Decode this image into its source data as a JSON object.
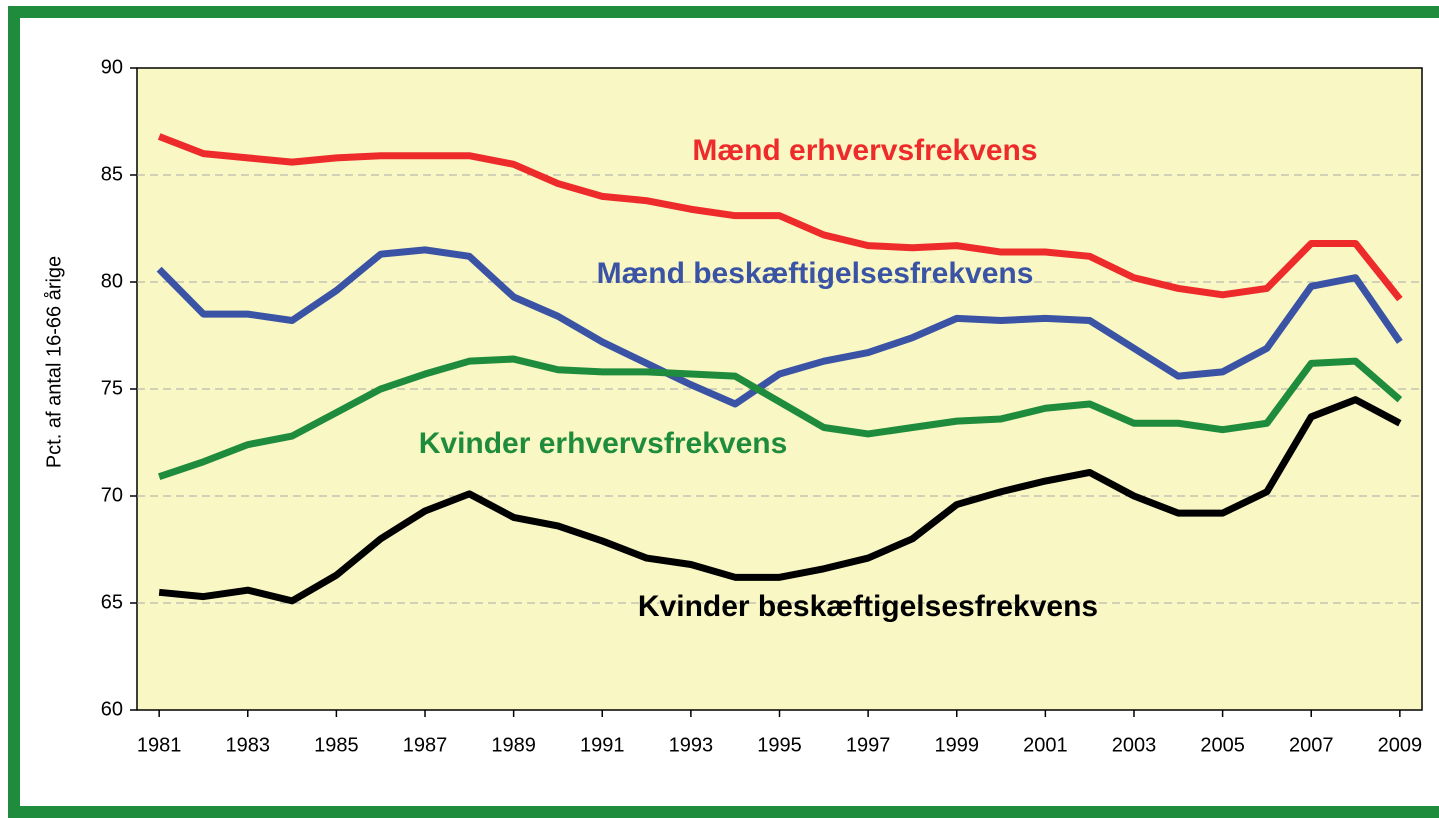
{
  "chart_data": {
    "type": "line",
    "y_label": "Pct. af antal 16-66 årige",
    "x": [
      1981,
      1982,
      1983,
      1984,
      1985,
      1986,
      1987,
      1988,
      1989,
      1990,
      1991,
      1992,
      1993,
      1994,
      1995,
      1996,
      1997,
      1998,
      1999,
      2000,
      2001,
      2002,
      2003,
      2004,
      2005,
      2006,
      2007,
      2008,
      2009
    ],
    "xlim": [
      1980.5,
      2009.5
    ],
    "xticks": [
      1981,
      1983,
      1985,
      1987,
      1989,
      1991,
      1993,
      1995,
      1997,
      1999,
      2001,
      2003,
      2005,
      2007,
      2009
    ],
    "ylim": [
      60,
      90
    ],
    "yticks": [
      60,
      65,
      70,
      75,
      80,
      85,
      90
    ],
    "grid": true,
    "series": [
      {
        "name": "Mænd erhvervsfrekvens",
        "color": "#ee2b2b",
        "values": [
          86.8,
          86.0,
          85.8,
          85.6,
          85.8,
          85.9,
          85.9,
          85.9,
          85.5,
          84.6,
          84.0,
          83.8,
          83.4,
          83.1,
          83.1,
          82.2,
          81.7,
          81.6,
          81.7,
          81.4,
          81.4,
          81.2,
          80.2,
          79.7,
          79.4,
          79.7,
          81.8,
          81.8,
          79.2
        ]
      },
      {
        "name": "Mænd beskæftigelsesfrekvens",
        "color": "#3a53a4",
        "values": [
          80.6,
          78.5,
          78.5,
          78.2,
          79.6,
          81.3,
          81.5,
          81.2,
          79.3,
          78.4,
          77.2,
          76.2,
          75.2,
          74.3,
          75.7,
          76.3,
          76.7,
          77.4,
          78.3,
          78.2,
          78.3,
          78.2,
          76.9,
          75.6,
          75.8,
          76.9,
          79.8,
          80.2,
          77.2
        ]
      },
      {
        "name": "Kvinder erhvervsfrekvens",
        "color": "#1e8c3c",
        "values": [
          70.9,
          71.6,
          72.4,
          72.8,
          73.9,
          75.0,
          75.7,
          76.3,
          76.4,
          75.9,
          75.8,
          75.8,
          75.7,
          75.6,
          74.4,
          73.2,
          72.9,
          73.2,
          73.5,
          73.6,
          74.1,
          74.3,
          73.4,
          73.4,
          73.1,
          73.4,
          76.2,
          76.3,
          74.5
        ]
      },
      {
        "name": "Kvinder beskæftigelsesfrekvens",
        "color": "#000000",
        "values": [
          65.5,
          65.3,
          65.6,
          65.1,
          66.3,
          68.0,
          69.3,
          70.1,
          69.0,
          68.6,
          67.9,
          67.1,
          66.8,
          66.2,
          66.2,
          66.6,
          67.1,
          68.0,
          69.6,
          70.2,
          70.7,
          71.1,
          70.0,
          69.2,
          69.2,
          70.2,
          73.7,
          74.5,
          73.4
        ]
      }
    ]
  }
}
